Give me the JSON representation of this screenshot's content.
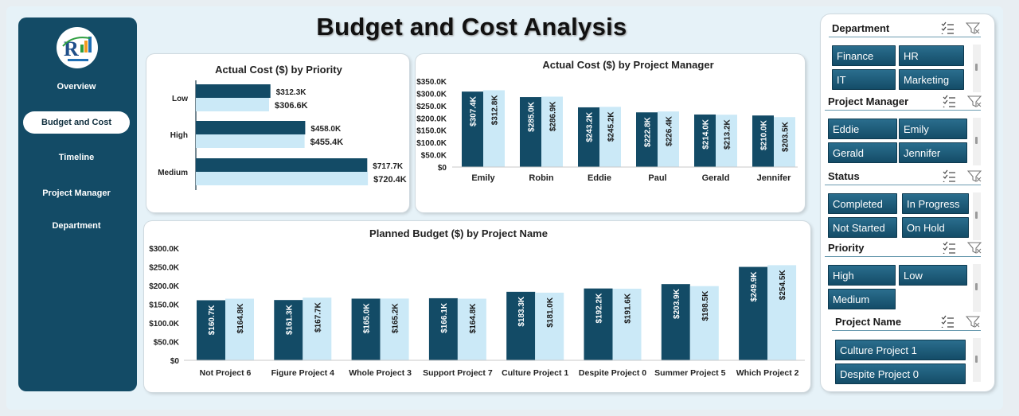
{
  "title": "Budget and Cost Analysis",
  "nav": [
    {
      "label": "Overview",
      "active": false
    },
    {
      "label": "Budget and Cost",
      "active": true
    },
    {
      "label": "Timeline",
      "active": false
    },
    {
      "label": "Project Manager",
      "active": false
    },
    {
      "label": "Department",
      "active": false
    }
  ],
  "colors": {
    "actual": "#134b66",
    "planned": "#cbe9f7",
    "sidebar": "#134b66"
  },
  "chart_data": [
    {
      "id": "priority",
      "type": "bar",
      "orientation": "horizontal",
      "title": "Actual Cost ($) by Priority",
      "categories": [
        "Low",
        "High",
        "Medium"
      ],
      "series": [
        {
          "name": "Actual Cost",
          "values": [
            312.3,
            458.0,
            717.7
          ],
          "labels": [
            "$312.3K",
            "$458.0K",
            "$717.7K"
          ]
        },
        {
          "name": "Planned Budget",
          "values": [
            306.6,
            455.4,
            720.4
          ],
          "labels": [
            "$306.6K",
            "$455.4K",
            "$720.4K"
          ]
        }
      ],
      "xlim": [
        0,
        760
      ]
    },
    {
      "id": "manager",
      "type": "bar",
      "title": "Actual Cost ($) by Project Manager",
      "categories": [
        "Emily",
        "Robin",
        "Eddie",
        "Paul",
        "Gerald",
        "Jennifer"
      ],
      "series": [
        {
          "name": "Actual Cost",
          "values": [
            307.4,
            285.0,
            243.2,
            222.8,
            214.0,
            210.0
          ],
          "labels": [
            "$307.4K",
            "$285.0K",
            "$243.2K",
            "$222.8K",
            "$214.0K",
            "$210.0K"
          ]
        },
        {
          "name": "Planned Budget",
          "values": [
            312.8,
            286.9,
            245.2,
            226.4,
            213.2,
            203.5
          ],
          "labels": [
            "$312.8K",
            "$286.9K",
            "$245.2K",
            "$226.4K",
            "$213.2K",
            "$203.5K"
          ]
        }
      ],
      "yticks": [
        "$0",
        "$50.0K",
        "$100.0K",
        "$150.0K",
        "$200.0K",
        "$250.0K",
        "$300.0K",
        "$350.0K"
      ],
      "ylim": [
        0,
        350
      ]
    },
    {
      "id": "project",
      "type": "bar",
      "title": "Planned Budget ($) by Project Name",
      "categories": [
        "Not Project 6",
        "Figure Project 4",
        "Whole Project 3",
        "Support Project 7",
        "Culture Project 1",
        "Despite Project 0",
        "Summer Project 5",
        "Which Project 2"
      ],
      "series": [
        {
          "name": "Actual Cost",
          "values": [
            160.7,
            161.3,
            165.0,
            166.1,
            183.3,
            192.2,
            203.9,
            249.9
          ],
          "labels": [
            "$160.7K",
            "$161.3K",
            "$165.0K",
            "$166.1K",
            "$183.3K",
            "$192.2K",
            "$203.9K",
            "$249.9K"
          ]
        },
        {
          "name": "Planned Budget",
          "values": [
            164.8,
            167.7,
            165.2,
            164.8,
            181.0,
            191.6,
            198.5,
            254.5
          ],
          "labels": [
            "$164.8K",
            "$167.7K",
            "$165.2K",
            "$164.8K",
            "$181.0K",
            "$191.6K",
            "$198.5K",
            "$254.5K"
          ]
        }
      ],
      "yticks": [
        "$0",
        "$50.0K",
        "$100.0K",
        "$150.0K",
        "$200.0K",
        "$250.0K",
        "$300.0K"
      ],
      "ylim": [
        0,
        300
      ]
    }
  ],
  "slicers": [
    {
      "name": "Department",
      "items": [
        "Finance",
        "HR",
        "IT",
        "Marketing"
      ]
    },
    {
      "name": "Project Manager",
      "items": [
        "Eddie",
        "Emily",
        "Gerald",
        "Jennifer"
      ]
    },
    {
      "name": "Status",
      "items": [
        "Completed",
        "In Progress",
        "Not Started",
        "On Hold"
      ]
    },
    {
      "name": "Priority",
      "items": [
        "High",
        "Low",
        "Medium"
      ]
    },
    {
      "name": "Project Name",
      "items": [
        "Culture Project 1",
        "Despite Project 0"
      ]
    }
  ]
}
